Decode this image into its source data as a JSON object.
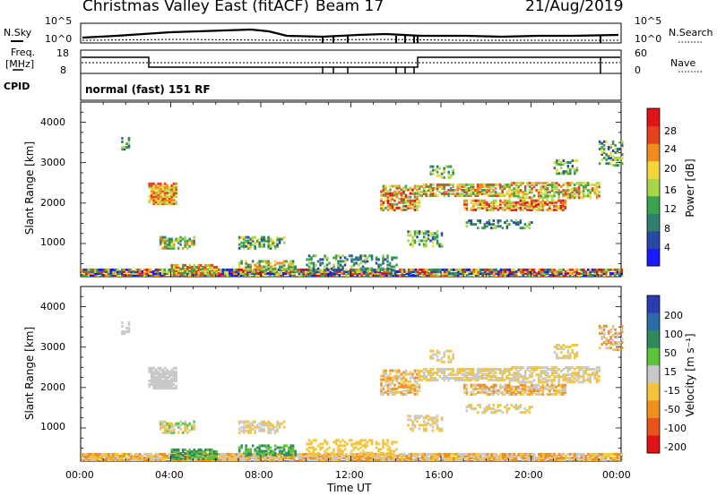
{
  "header": {
    "title": "Christmas Valley East (fitACF)",
    "beam": "Beam 17",
    "date": "21/Aug/2019"
  },
  "top_panel": {
    "left_label": "N.Sky",
    "right_label": "N.Search",
    "left_ticks": [
      "10^5",
      "10^0"
    ],
    "right_ticks": [
      "10^5",
      "10^0"
    ]
  },
  "freq_panel": {
    "left_label_line1": "Freq.",
    "left_label_line2": "[MHz]",
    "right_label": "Nave",
    "left_ticks": [
      "18",
      "8"
    ],
    "right_ticks": [
      "60",
      "0"
    ]
  },
  "cpid_panel": {
    "label": "CPID",
    "mode": "normal (fast) 151 RF"
  },
  "colors": {
    "power_scale": [
      "#1a1aff",
      "#2849a3",
      "#2e7f6d",
      "#3aa34d",
      "#a6d645",
      "#f3d63a",
      "#f08c1e",
      "#e4411c",
      "#e01414"
    ],
    "velocity_scale": [
      "#2a3cb0",
      "#2a6aa8",
      "#2e8a5d",
      "#5bc43a",
      "#c8c8c8",
      "#f3c33a",
      "#f0901e",
      "#e8551a",
      "#e01414"
    ]
  },
  "chart_data": [
    {
      "type": "heatmap",
      "name": "power",
      "xlabel": "",
      "ylabel": "Slant Range [km]",
      "x_range": [
        "00:00",
        "24:00"
      ],
      "ylim": [
        180,
        4500
      ],
      "y_ticks": [
        "1000",
        "2000",
        "3000",
        "4000"
      ],
      "colorbar_label": "Power [dB]",
      "colorbar_ticks": [
        "4",
        "8",
        "12",
        "16",
        "20",
        "24",
        "28"
      ],
      "colorbar_range": [
        0,
        30
      ]
    },
    {
      "type": "heatmap",
      "name": "velocity",
      "xlabel": "Time UT",
      "ylabel": "Slant Range [km]",
      "x_range": [
        "00:00",
        "24:00"
      ],
      "x_ticks": [
        "00:00",
        "04:00",
        "08:00",
        "12:00",
        "16:00",
        "20:00",
        "00:00"
      ],
      "ylim": [
        180,
        4500
      ],
      "y_ticks": [
        "1000",
        "2000",
        "3000",
        "4000"
      ],
      "colorbar_label": "Velocity [m s⁻¹]",
      "colorbar_ticks": [
        "200",
        "100",
        "50",
        "15",
        "-15",
        "-50",
        "-100",
        "-200"
      ]
    }
  ]
}
